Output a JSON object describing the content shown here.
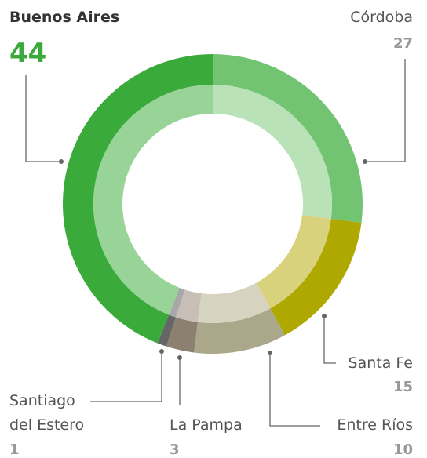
{
  "chart_data": {
    "type": "donut",
    "categories": [
      "Buenos Aires",
      "Córdoba",
      "Santa Fe",
      "Entre Ríos",
      "La Pampa",
      "Santiago del Estero"
    ],
    "values": [
      44,
      27,
      15,
      10,
      3,
      1
    ],
    "colors": [
      "#3aaa3a",
      "#72c472",
      "#aea800",
      "#aba78a",
      "#8c8070",
      "#666666"
    ],
    "inner_colors": [
      "#98d498",
      "#b9e2b9",
      "#d8d27c",
      "#d6d3c0",
      "#c7bfb7",
      "#a8a8a8"
    ]
  }
}
